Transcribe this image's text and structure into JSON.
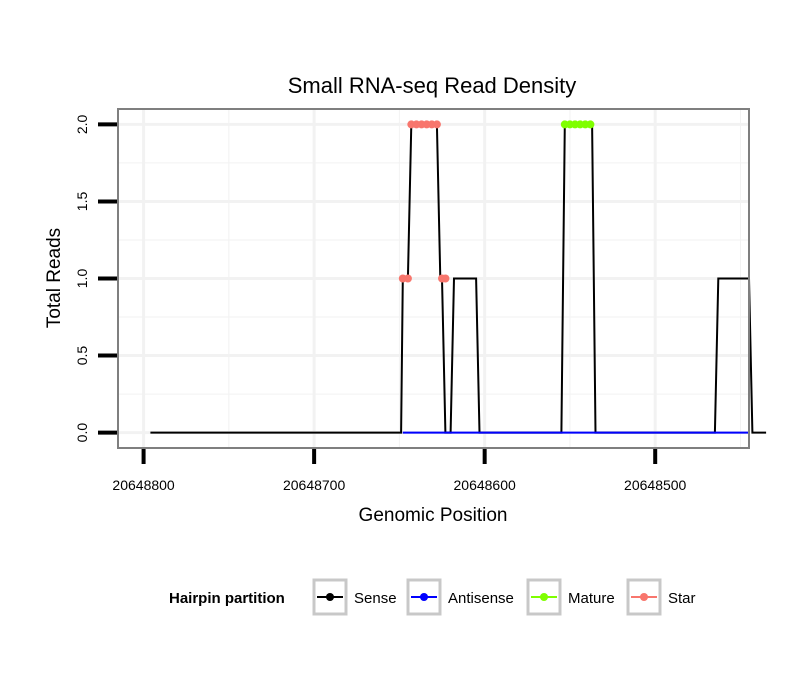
{
  "chart_data": {
    "type": "line",
    "title": "Small RNA-seq Read Density",
    "xlabel": "Genomic Position",
    "ylabel": "Total Reads",
    "x_reversed": true,
    "xlim": [
      20648815,
      20648445
    ],
    "ylim": [
      -0.1,
      2.1
    ],
    "x_ticks": [
      20648800,
      20648700,
      20648600,
      20648500
    ],
    "x_tick_labels": [
      "20648800",
      "20648700",
      "20648600",
      "20648500"
    ],
    "y_ticks": [
      0,
      0.5,
      1,
      1.5,
      2
    ],
    "y_tick_labels": [
      "0.0",
      "0.5",
      "1.0",
      "1.5",
      "2.0"
    ],
    "grid": true,
    "legend": {
      "title": "Hairpin partition",
      "position": "bottom",
      "entries": [
        {
          "name": "Sense",
          "color": "#000000"
        },
        {
          "name": "Antisense",
          "color": "#0000ff"
        },
        {
          "name": "Mature",
          "color": "#7fff00"
        },
        {
          "name": "Star",
          "color": "#f8766d"
        }
      ]
    },
    "series": [
      {
        "name": "Sense",
        "color": "#000000",
        "style": "line",
        "points": [
          [
            20648796,
            0
          ],
          [
            20648649,
            0
          ],
          [
            20648648,
            1
          ],
          [
            20648645,
            1
          ],
          [
            20648643,
            2
          ],
          [
            20648628,
            2
          ],
          [
            20648626,
            1
          ],
          [
            20648625,
            1
          ],
          [
            20648623,
            0
          ],
          [
            20648620,
            0
          ],
          [
            20648618,
            1
          ],
          [
            20648605,
            1
          ],
          [
            20648603,
            0
          ],
          [
            20648555,
            0
          ],
          [
            20648553,
            2
          ],
          [
            20648537,
            2
          ],
          [
            20648535,
            0
          ],
          [
            20648465,
            0
          ],
          [
            20648463,
            1
          ],
          [
            20648445,
            1
          ],
          [
            20648443,
            0
          ],
          [
            20648435,
            0
          ]
        ]
      },
      {
        "name": "Antisense",
        "color": "#0000ff",
        "style": "line",
        "points": [
          [
            20648648,
            0
          ],
          [
            20648620,
            0
          ],
          [
            20648555,
            0
          ],
          [
            20648537,
            0
          ],
          [
            20648463,
            0
          ],
          [
            20648445,
            0
          ]
        ]
      },
      {
        "name": "Mature",
        "color": "#7fff00",
        "style": "points",
        "points": [
          [
            20648553,
            2
          ],
          [
            20648550,
            2
          ],
          [
            20648547,
            2
          ],
          [
            20648544,
            2
          ],
          [
            20648541,
            2
          ],
          [
            20648538,
            2
          ]
        ]
      },
      {
        "name": "Star",
        "color": "#f8766d",
        "style": "points",
        "points": [
          [
            20648648,
            1
          ],
          [
            20648645,
            1
          ],
          [
            20648643,
            2
          ],
          [
            20648640,
            2
          ],
          [
            20648637,
            2
          ],
          [
            20648634,
            2
          ],
          [
            20648631,
            2
          ],
          [
            20648628,
            2
          ],
          [
            20648625,
            1
          ],
          [
            20648623,
            1
          ]
        ]
      }
    ]
  }
}
